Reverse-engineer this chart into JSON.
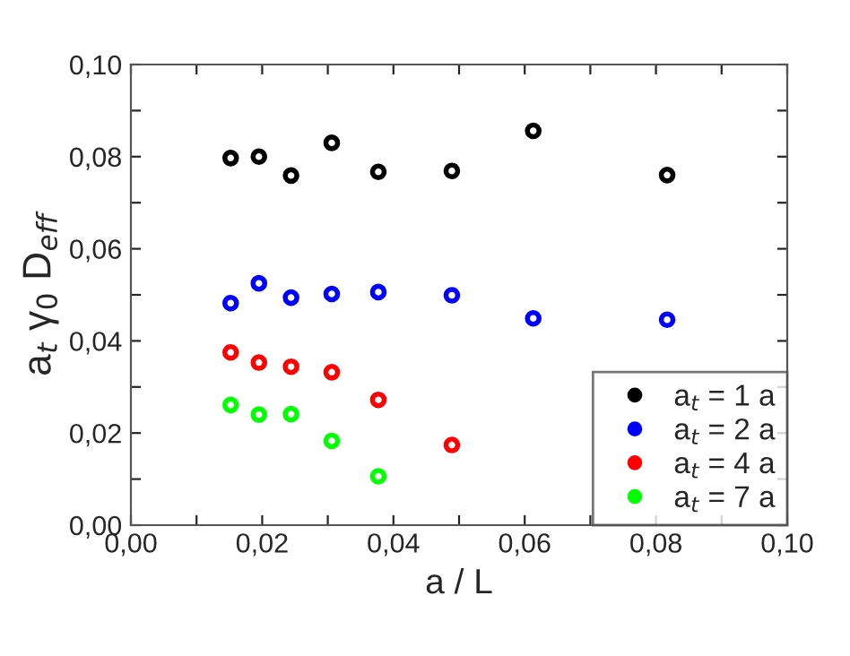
{
  "chart_data": {
    "type": "scatter",
    "xlabel": "a / L",
    "ylabel": "a$_{t}$ γ$_{0}$ D$_{eff}$",
    "xlim": [
      0,
      0.1
    ],
    "ylim": [
      0,
      0.1
    ],
    "xticks": [
      {
        "value": 0,
        "label": "0,00"
      },
      {
        "value": 0.01,
        "label": null
      },
      {
        "value": 0.02,
        "label": "0,02"
      },
      {
        "value": 0.03,
        "label": null
      },
      {
        "value": 0.04,
        "label": "0,04"
      },
      {
        "value": 0.05,
        "label": null
      },
      {
        "value": 0.06,
        "label": "0,06"
      },
      {
        "value": 0.07,
        "label": null
      },
      {
        "value": 0.08,
        "label": "0,08"
      },
      {
        "value": 0.09,
        "label": null
      },
      {
        "value": 0.1,
        "label": "0,10"
      }
    ],
    "yticks": [
      {
        "value": 0,
        "label": "0,00"
      },
      {
        "value": 0.01,
        "label": null
      },
      {
        "value": 0.02,
        "label": "0,02"
      },
      {
        "value": 0.03,
        "label": null
      },
      {
        "value": 0.04,
        "label": "0,04"
      },
      {
        "value": 0.05,
        "label": null
      },
      {
        "value": 0.06,
        "label": "0,06"
      },
      {
        "value": 0.07,
        "label": null
      },
      {
        "value": 0.08,
        "label": "0,08"
      },
      {
        "value": 0.09,
        "label": null
      },
      {
        "value": 0.1,
        "label": "0,10"
      }
    ],
    "marker": "circle",
    "grid": false,
    "legend": "bottom right",
    "series": [
      {
        "name": "a$_{t}$ = 1 a",
        "color": "#000000",
        "x": [
          0.0152,
          0.0195,
          0.0244,
          0.0306,
          0.0377,
          0.0489,
          0.0613,
          0.0817
        ],
        "values": [
          0.0797,
          0.08,
          0.0759,
          0.083,
          0.0767,
          0.0769,
          0.0856,
          0.076
        ]
      },
      {
        "name": "a$_{t}$ = 2 a",
        "color": "#0000ff",
        "x": [
          0.0152,
          0.0195,
          0.0244,
          0.0306,
          0.0377,
          0.0489,
          0.0613,
          0.0817
        ],
        "values": [
          0.0482,
          0.0525,
          0.0494,
          0.0502,
          0.0506,
          0.0499,
          0.0449,
          0.0446
        ]
      },
      {
        "name": "a$_{t}$ = 4 a",
        "color": "#ff0000",
        "x": [
          0.0152,
          0.0195,
          0.0244,
          0.0306,
          0.0377,
          0.0489
        ],
        "values": [
          0.0375,
          0.0353,
          0.0344,
          0.0332,
          0.0272,
          0.0174
        ]
      },
      {
        "name": "a$_{t}$ = 7 a",
        "color": "#00ff00",
        "x": [
          0.0152,
          0.0195,
          0.0244,
          0.0306,
          0.0377
        ],
        "values": [
          0.0261,
          0.024,
          0.0241,
          0.0183,
          0.0106
        ]
      }
    ]
  }
}
